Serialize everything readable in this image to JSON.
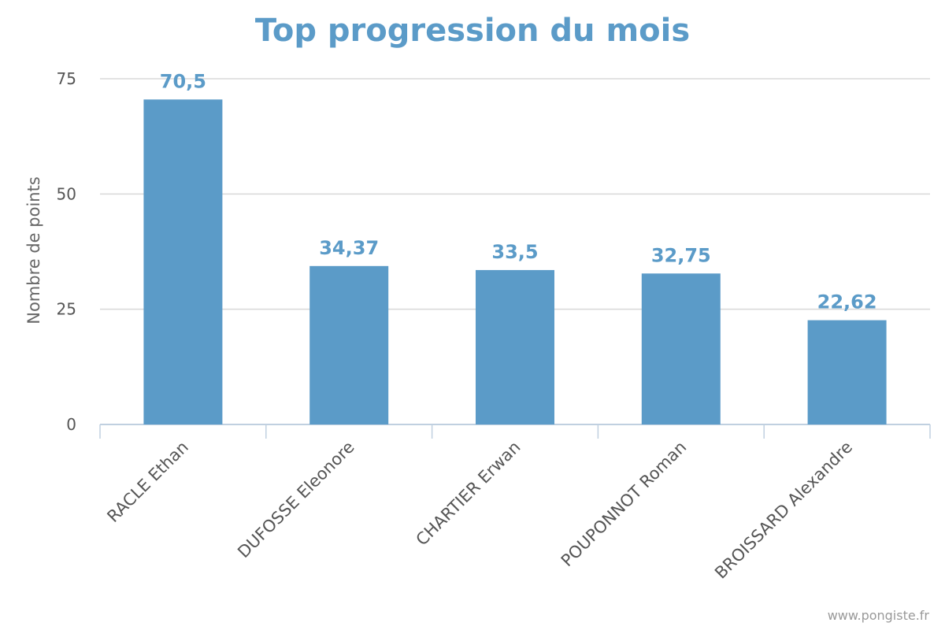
{
  "chart_data": {
    "type": "bar",
    "title": "Top progression du mois",
    "xlabel": "",
    "ylabel": "Nombre de points",
    "categories": [
      "RACLE Ethan",
      "DUFOSSE Eleonore",
      "CHARTIER Erwan",
      "POUPONNOT Roman",
      "BROISSARD Alexandre"
    ],
    "values": [
      70.5,
      34.37,
      33.5,
      32.75,
      22.62
    ],
    "value_labels": [
      "70,5",
      "34,37",
      "33,5",
      "32,75",
      "22,62"
    ],
    "ylim": [
      0,
      75
    ],
    "y_ticks": [
      0,
      25,
      50,
      75
    ],
    "grid": true,
    "legend": "none"
  },
  "colors": {
    "bar": "#5b9bc8",
    "title": "#5b9bc8",
    "data_label": "#5b9bc8",
    "grid": "#d8d8d8",
    "axis": "#c0d0e0"
  },
  "credit": "www.pongiste.fr"
}
